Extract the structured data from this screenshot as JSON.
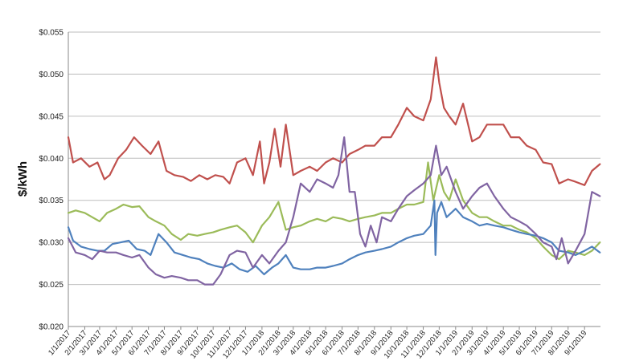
{
  "chart_data": {
    "type": "line",
    "title": "",
    "xlabel": "",
    "ylabel": "$/kWh",
    "ylim": [
      0.02,
      0.055
    ],
    "yticks": [
      0.02,
      0.025,
      0.03,
      0.035,
      0.04,
      0.045,
      0.05,
      0.055
    ],
    "ytick_labels": [
      "$0.020",
      "$0.025",
      "$0.030",
      "$0.035",
      "$0.040",
      "$0.045",
      "$0.050",
      "$0.055"
    ],
    "xlim": [
      "2017-01-01",
      "2019-10-01"
    ],
    "xtick_dates": [
      "2017-01-01",
      "2017-02-01",
      "2017-03-01",
      "2017-04-01",
      "2017-05-01",
      "2017-06-01",
      "2017-07-01",
      "2017-08-01",
      "2017-09-01",
      "2017-10-01",
      "2017-11-01",
      "2017-12-01",
      "2018-01-01",
      "2018-02-01",
      "2018-03-01",
      "2018-04-01",
      "2018-05-01",
      "2018-06-01",
      "2018-07-01",
      "2018-08-01",
      "2018-09-01",
      "2018-10-01",
      "2018-11-01",
      "2018-12-01",
      "2019-01-01",
      "2019-02-01",
      "2019-03-01",
      "2019-04-01",
      "2019-05-01",
      "2019-06-01",
      "2019-07-01",
      "2019-08-01",
      "2019-09-01"
    ],
    "xtick_labels": [
      "1/1/2017",
      "2/1/2017",
      "3/1/2017",
      "4/1/2017",
      "5/1/2017",
      "6/1/2017",
      "7/1/2017",
      "8/1/2017",
      "9/1/2017",
      "10/1/2017",
      "11/1/2017",
      "12/1/2017",
      "1/1/2018",
      "2/1/2018",
      "3/1/2018",
      "4/1/2018",
      "5/1/2018",
      "6/1/2018",
      "7/1/2018",
      "8/1/2018",
      "9/1/2018",
      "10/1/2018",
      "11/1/2018",
      "12/1/2018",
      "1/1/2019",
      "2/1/2019",
      "3/1/2019",
      "4/1/2019",
      "5/1/2019",
      "6/1/2019",
      "7/1/2019",
      "8/1/2019",
      "9/1/2019"
    ],
    "grid": true,
    "legend": "none",
    "series": [
      {
        "color": "#c0504d",
        "x": [
          "2017-01-01",
          "2017-01-10",
          "2017-01-25",
          "2017-02-10",
          "2017-02-25",
          "2017-03-10",
          "2017-03-20",
          "2017-04-05",
          "2017-04-20",
          "2017-05-05",
          "2017-05-20",
          "2017-06-05",
          "2017-06-20",
          "2017-07-05",
          "2017-07-20",
          "2017-08-05",
          "2017-08-20",
          "2017-09-05",
          "2017-09-20",
          "2017-10-05",
          "2017-10-20",
          "2017-11-01",
          "2017-11-15",
          "2017-12-01",
          "2017-12-15",
          "2017-12-28",
          "2018-01-05",
          "2018-01-15",
          "2018-01-25",
          "2018-02-05",
          "2018-02-15",
          "2018-03-01",
          "2018-03-15",
          "2018-04-01",
          "2018-04-15",
          "2018-05-01",
          "2018-05-15",
          "2018-06-01",
          "2018-06-15",
          "2018-07-01",
          "2018-07-15",
          "2018-08-01",
          "2018-08-15",
          "2018-09-01",
          "2018-09-15",
          "2018-10-01",
          "2018-10-15",
          "2018-11-01",
          "2018-11-15",
          "2018-11-25",
          "2018-12-01",
          "2018-12-10",
          "2018-12-20",
          "2019-01-01",
          "2019-01-15",
          "2019-02-01",
          "2019-02-15",
          "2019-03-01",
          "2019-03-15",
          "2019-04-01",
          "2019-04-15",
          "2019-05-01",
          "2019-05-15",
          "2019-06-01",
          "2019-06-15",
          "2019-07-01",
          "2019-07-15",
          "2019-08-01",
          "2019-08-15",
          "2019-09-01",
          "2019-09-15",
          "2019-09-30"
        ],
        "y": [
          0.0425,
          0.0395,
          0.04,
          0.039,
          0.0395,
          0.0375,
          0.038,
          0.04,
          0.041,
          0.0425,
          0.0415,
          0.0405,
          0.042,
          0.0385,
          0.038,
          0.0378,
          0.0373,
          0.038,
          0.0375,
          0.038,
          0.0378,
          0.037,
          0.0395,
          0.04,
          0.038,
          0.042,
          0.037,
          0.0395,
          0.0435,
          0.039,
          0.044,
          0.038,
          0.0385,
          0.039,
          0.0385,
          0.0395,
          0.04,
          0.0395,
          0.0405,
          0.041,
          0.0415,
          0.0415,
          0.0425,
          0.0425,
          0.044,
          0.046,
          0.045,
          0.0445,
          0.047,
          0.052,
          0.049,
          0.046,
          0.045,
          0.044,
          0.0465,
          0.042,
          0.0425,
          0.044,
          0.044,
          0.044,
          0.0425,
          0.0425,
          0.0415,
          0.041,
          0.0395,
          0.0393,
          0.037,
          0.0375,
          0.0372,
          0.0368,
          0.0385,
          0.0393
        ]
      },
      {
        "color": "#9bbb59",
        "x": [
          "2017-01-01",
          "2017-01-15",
          "2017-02-01",
          "2017-02-15",
          "2017-03-01",
          "2017-03-15",
          "2017-04-01",
          "2017-04-15",
          "2017-05-01",
          "2017-05-15",
          "2017-06-01",
          "2017-06-15",
          "2017-07-01",
          "2017-07-15",
          "2017-08-01",
          "2017-08-15",
          "2017-09-01",
          "2017-09-15",
          "2017-10-01",
          "2017-10-15",
          "2017-11-01",
          "2017-11-15",
          "2017-12-01",
          "2017-12-15",
          "2018-01-01",
          "2018-01-15",
          "2018-02-01",
          "2018-02-15",
          "2018-03-01",
          "2018-03-15",
          "2018-04-01",
          "2018-04-15",
          "2018-05-01",
          "2018-05-15",
          "2018-06-01",
          "2018-06-15",
          "2018-07-01",
          "2018-07-15",
          "2018-08-01",
          "2018-08-15",
          "2018-09-01",
          "2018-09-15",
          "2018-10-01",
          "2018-10-15",
          "2018-11-01",
          "2018-11-10",
          "2018-11-20",
          "2018-12-01",
          "2018-12-10",
          "2018-12-20",
          "2019-01-01",
          "2019-01-15",
          "2019-02-01",
          "2019-02-15",
          "2019-03-01",
          "2019-03-15",
          "2019-04-01",
          "2019-04-15",
          "2019-05-01",
          "2019-05-15",
          "2019-06-01",
          "2019-06-15",
          "2019-07-01",
          "2019-07-15",
          "2019-08-01",
          "2019-08-15",
          "2019-09-01",
          "2019-09-15",
          "2019-09-30"
        ],
        "y": [
          0.0335,
          0.0338,
          0.0335,
          0.033,
          0.0325,
          0.0335,
          0.034,
          0.0345,
          0.0342,
          0.0343,
          0.033,
          0.0325,
          0.032,
          0.031,
          0.0303,
          0.031,
          0.0308,
          0.031,
          0.0312,
          0.0315,
          0.0318,
          0.032,
          0.0312,
          0.03,
          0.032,
          0.033,
          0.0348,
          0.0315,
          0.0318,
          0.032,
          0.0325,
          0.0328,
          0.0325,
          0.033,
          0.0328,
          0.0325,
          0.0328,
          0.033,
          0.0332,
          0.0335,
          0.0335,
          0.034,
          0.0345,
          0.0345,
          0.0348,
          0.0395,
          0.035,
          0.038,
          0.036,
          0.035,
          0.0375,
          0.035,
          0.0335,
          0.033,
          0.033,
          0.0325,
          0.032,
          0.032,
          0.0315,
          0.0312,
          0.0305,
          0.0295,
          0.0285,
          0.028,
          0.029,
          0.0288,
          0.0285,
          0.029,
          0.03
        ]
      },
      {
        "color": "#4f81bd",
        "x": [
          "2017-01-01",
          "2017-01-10",
          "2017-01-25",
          "2017-02-10",
          "2017-02-25",
          "2017-03-10",
          "2017-03-25",
          "2017-04-10",
          "2017-04-25",
          "2017-05-10",
          "2017-05-25",
          "2017-06-05",
          "2017-06-20",
          "2017-07-05",
          "2017-07-20",
          "2017-08-05",
          "2017-08-20",
          "2017-09-05",
          "2017-09-20",
          "2017-10-05",
          "2017-10-20",
          "2017-11-05",
          "2017-11-20",
          "2017-12-05",
          "2017-12-20",
          "2018-01-05",
          "2018-01-20",
          "2018-02-01",
          "2018-02-15",
          "2018-03-01",
          "2018-03-15",
          "2018-04-01",
          "2018-04-15",
          "2018-05-01",
          "2018-05-15",
          "2018-06-01",
          "2018-06-15",
          "2018-07-01",
          "2018-07-15",
          "2018-08-01",
          "2018-08-15",
          "2018-09-01",
          "2018-09-15",
          "2018-10-01",
          "2018-10-15",
          "2018-11-01",
          "2018-11-15",
          "2018-11-22",
          "2018-11-24",
          "2018-11-27",
          "2018-12-05",
          "2018-12-15",
          "2019-01-01",
          "2019-01-15",
          "2019-02-01",
          "2019-02-15",
          "2019-03-01",
          "2019-03-15",
          "2019-04-01",
          "2019-04-15",
          "2019-05-01",
          "2019-05-15",
          "2019-06-01",
          "2019-06-15",
          "2019-07-01",
          "2019-07-15",
          "2019-08-01",
          "2019-08-15",
          "2019-09-01",
          "2019-09-15",
          "2019-09-30"
        ],
        "y": [
          0.0318,
          0.0302,
          0.0295,
          0.0292,
          0.029,
          0.029,
          0.0298,
          0.03,
          0.0302,
          0.0292,
          0.029,
          0.0285,
          0.031,
          0.03,
          0.0288,
          0.0285,
          0.0282,
          0.028,
          0.0275,
          0.0272,
          0.027,
          0.0275,
          0.0268,
          0.0265,
          0.0272,
          0.0262,
          0.027,
          0.0275,
          0.0285,
          0.027,
          0.0268,
          0.0268,
          0.027,
          0.027,
          0.0272,
          0.0275,
          0.028,
          0.0285,
          0.0288,
          0.029,
          0.0292,
          0.0295,
          0.03,
          0.0305,
          0.0308,
          0.031,
          0.032,
          0.035,
          0.0285,
          0.0335,
          0.0348,
          0.033,
          0.034,
          0.033,
          0.0325,
          0.032,
          0.0322,
          0.032,
          0.0318,
          0.0315,
          0.0312,
          0.031,
          0.0308,
          0.0305,
          0.03,
          0.029,
          0.0288,
          0.0285,
          0.029,
          0.0295,
          0.0288
        ]
      },
      {
        "color": "#8064a2",
        "x": [
          "2017-01-01",
          "2017-01-15",
          "2017-02-01",
          "2017-02-15",
          "2017-03-01",
          "2017-03-15",
          "2017-04-01",
          "2017-04-15",
          "2017-05-01",
          "2017-05-15",
          "2017-06-01",
          "2017-06-15",
          "2017-07-01",
          "2017-07-15",
          "2017-08-01",
          "2017-08-15",
          "2017-09-01",
          "2017-09-15",
          "2017-10-01",
          "2017-10-15",
          "2017-11-01",
          "2017-11-15",
          "2017-12-01",
          "2017-12-15",
          "2018-01-01",
          "2018-01-15",
          "2018-02-01",
          "2018-02-15",
          "2018-03-01",
          "2018-03-15",
          "2018-04-01",
          "2018-04-15",
          "2018-05-01",
          "2018-05-15",
          "2018-05-25",
          "2018-06-05",
          "2018-06-15",
          "2018-06-25",
          "2018-07-05",
          "2018-07-15",
          "2018-07-25",
          "2018-08-05",
          "2018-08-15",
          "2018-09-01",
          "2018-09-15",
          "2018-10-01",
          "2018-10-15",
          "2018-11-01",
          "2018-11-15",
          "2018-11-25",
          "2018-12-05",
          "2018-12-15",
          "2019-01-01",
          "2019-01-15",
          "2019-02-01",
          "2019-02-15",
          "2019-03-01",
          "2019-03-15",
          "2019-04-01",
          "2019-04-15",
          "2019-05-01",
          "2019-05-15",
          "2019-06-01",
          "2019-06-15",
          "2019-07-01",
          "2019-07-10",
          "2019-07-20",
          "2019-08-01",
          "2019-08-15",
          "2019-09-01",
          "2019-09-15",
          "2019-09-30"
        ],
        "y": [
          0.0305,
          0.0288,
          0.0285,
          0.028,
          0.029,
          0.0288,
          0.0288,
          0.0285,
          0.0282,
          0.0285,
          0.027,
          0.0262,
          0.0258,
          0.026,
          0.0258,
          0.0255,
          0.0255,
          0.025,
          0.025,
          0.0262,
          0.0285,
          0.029,
          0.0288,
          0.027,
          0.0285,
          0.0275,
          0.029,
          0.03,
          0.033,
          0.037,
          0.036,
          0.0375,
          0.037,
          0.0365,
          0.038,
          0.0425,
          0.036,
          0.036,
          0.031,
          0.0295,
          0.032,
          0.03,
          0.033,
          0.0325,
          0.034,
          0.0355,
          0.0362,
          0.037,
          0.038,
          0.0415,
          0.038,
          0.039,
          0.036,
          0.034,
          0.0355,
          0.0365,
          0.037,
          0.0355,
          0.034,
          0.033,
          0.0325,
          0.032,
          0.031,
          0.03,
          0.0295,
          0.028,
          0.0305,
          0.0275,
          0.029,
          0.031,
          0.036,
          0.0355
        ]
      }
    ]
  }
}
